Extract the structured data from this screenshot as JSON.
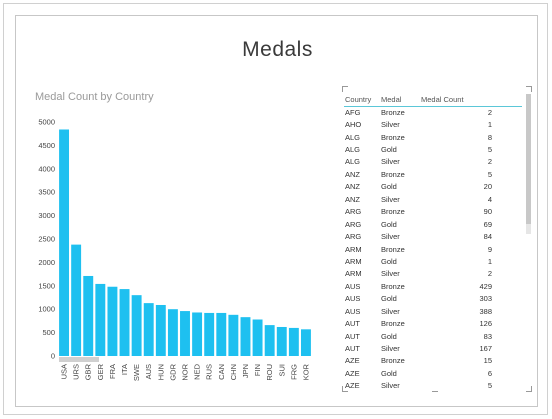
{
  "page": {
    "title": "Medals"
  },
  "chart_data": {
    "type": "bar",
    "title": "Medal Count by Country",
    "categories": [
      "USA",
      "URS",
      "GBR",
      "GER",
      "FRA",
      "ITA",
      "SWE",
      "AUS",
      "HUN",
      "GDR",
      "NOR",
      "NED",
      "RUS",
      "CAN",
      "CHN",
      "JPN",
      "FIN",
      "ROU",
      "SUI",
      "FRG",
      "KOR"
    ],
    "values": [
      4840,
      2380,
      1710,
      1540,
      1480,
      1430,
      1300,
      1130,
      1090,
      1000,
      960,
      930,
      920,
      920,
      880,
      830,
      780,
      660,
      620,
      600,
      570
    ],
    "yticks": [
      0,
      500,
      1000,
      1500,
      2000,
      2500,
      3000,
      3500,
      4000,
      4500,
      5000
    ],
    "ylim": [
      0,
      5000
    ],
    "color": "#1ec0f0",
    "grid": false,
    "legend": "none"
  },
  "table": {
    "columns": [
      "Country",
      "Medal",
      "Medal Count"
    ],
    "rows": [
      [
        "AFG",
        "Bronze",
        "2"
      ],
      [
        "AHO",
        "Silver",
        "1"
      ],
      [
        "ALG",
        "Bronze",
        "8"
      ],
      [
        "ALG",
        "Gold",
        "5"
      ],
      [
        "ALG",
        "Silver",
        "2"
      ],
      [
        "ANZ",
        "Bronze",
        "5"
      ],
      [
        "ANZ",
        "Gold",
        "20"
      ],
      [
        "ANZ",
        "Silver",
        "4"
      ],
      [
        "ARG",
        "Bronze",
        "90"
      ],
      [
        "ARG",
        "Gold",
        "69"
      ],
      [
        "ARG",
        "Silver",
        "84"
      ],
      [
        "ARM",
        "Bronze",
        "9"
      ],
      [
        "ARM",
        "Gold",
        "1"
      ],
      [
        "ARM",
        "Silver",
        "2"
      ],
      [
        "AUS",
        "Bronze",
        "429"
      ],
      [
        "AUS",
        "Gold",
        "303"
      ],
      [
        "AUS",
        "Silver",
        "388"
      ],
      [
        "AUT",
        "Bronze",
        "126"
      ],
      [
        "AUT",
        "Gold",
        "83"
      ],
      [
        "AUT",
        "Silver",
        "167"
      ],
      [
        "AZE",
        "Bronze",
        "15"
      ],
      [
        "AZE",
        "Gold",
        "6"
      ],
      [
        "AZE",
        "Silver",
        "5"
      ]
    ]
  },
  "colors": {
    "accent": "#5bc7d8",
    "bar": "#1ec0f0",
    "border": "#c7c7c7"
  }
}
